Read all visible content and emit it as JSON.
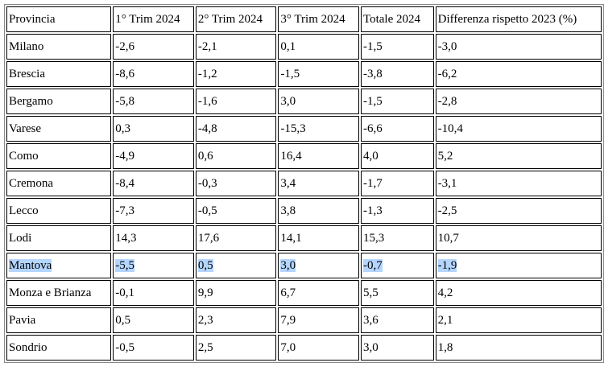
{
  "table": {
    "header": [
      "Provincia",
      "1° Trim 2024",
      "2° Trim 2024",
      "3° Trim 2024",
      "Totale 2024",
      "Differenza rispetto 2023 (%)"
    ],
    "rows": [
      [
        "Milano",
        "-2,6",
        "-2,1",
        "0,1",
        "-1,5",
        "-3,0"
      ],
      [
        "Brescia",
        "-8,6",
        "-1,2",
        "-1,5",
        "-3,8",
        "-6,2"
      ],
      [
        "Bergamo",
        "-5,8",
        "-1,6",
        "3,0",
        "-1,5",
        "-2,8"
      ],
      [
        "Varese",
        "0,3",
        "-4,8",
        "-15,3",
        "-6,6",
        "-10,4"
      ],
      [
        "Como",
        "-4,9",
        "0,6",
        "16,4",
        "4,0",
        "5,2"
      ],
      [
        "Cremona",
        "-8,4",
        "-0,3",
        "3,4",
        "-1,7",
        "-3,1"
      ],
      [
        "Lecco",
        "-7,3",
        "-0,5",
        "3,8",
        "-1,3",
        "-2,5"
      ],
      [
        "Lodi",
        "14,3",
        "17,6",
        "14,1",
        "15,3",
        "10,7"
      ],
      [
        "Mantova",
        "-5,5",
        "0,5",
        "3,0",
        "-0,7",
        "-1,9"
      ],
      [
        "Monza e Brianza",
        "-0,1",
        "9,9",
        "6,7",
        "5,5",
        "4,2"
      ],
      [
        "Pavia",
        "0,5",
        "2,3",
        "7,9",
        "3,6",
        "2,1"
      ],
      [
        "Sondrio",
        "-0,5",
        "2,5",
        "7,0",
        "3,0",
        "1,8"
      ]
    ]
  }
}
